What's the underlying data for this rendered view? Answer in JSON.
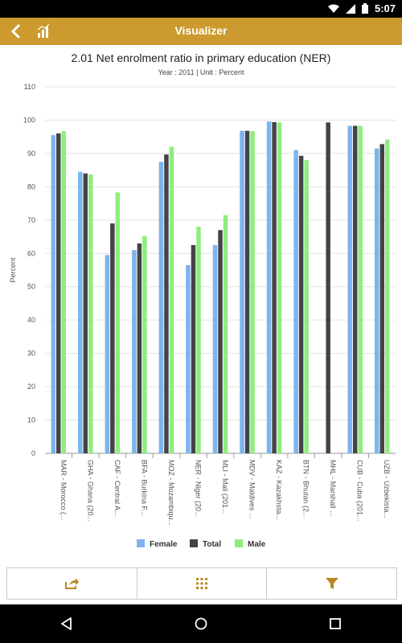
{
  "status_bar": {
    "time": "5:07",
    "icons": [
      "wifi-icon",
      "signal-icon",
      "battery-icon"
    ]
  },
  "app_bar": {
    "title": "Visualizer",
    "back_icon": "back-chevron-icon",
    "chart_icon": "bar-chart-icon",
    "color": "#cc9a2f"
  },
  "bottom_toolbar": {
    "icons": [
      "share-icon",
      "grid-icon",
      "filter-icon"
    ],
    "icon_color": "#b8881f"
  },
  "nav_bar": {
    "icons": [
      "back-triangle-icon",
      "home-circle-icon",
      "recents-square-icon"
    ]
  },
  "chart_data": {
    "type": "bar",
    "title": "2.01 Net enrolment ratio in primary education (NER)",
    "subtitle": "Year : 2011 | Unit : Percent",
    "ylabel": "Percent",
    "ylim": [
      0,
      110
    ],
    "yticks": [
      "0",
      "10",
      "20",
      "30",
      "40",
      "50",
      "60",
      "70",
      "80",
      "90",
      "100",
      "110"
    ],
    "grid": true,
    "legend_position": "bottom",
    "categories": [
      "MAR - Morocco (...",
      "GHA - Ghana (20...",
      "CAF - Central A...",
      "BFA - Burkina F...",
      "MOZ - Mozambiqu...",
      "NER - Niger (20...",
      "MLI - Mali (201...",
      "MDV - Maldives ...",
      "KAZ - Kazakhsta...",
      "BTN - Bhutan (2...",
      "MHL - Marshall ...",
      "CUB - Cuba (201...",
      "UZB - Uzbekista..."
    ],
    "series": [
      {
        "name": "Female",
        "color": "#7cb5ec",
        "values": [
          95.5,
          84.5,
          59.5,
          61.0,
          87.5,
          56.5,
          62.5,
          96.8,
          99.6,
          91.0,
          null,
          98.3,
          91.5
        ]
      },
      {
        "name": "Total",
        "color": "#434348",
        "values": [
          96.0,
          84.0,
          69.0,
          63.0,
          89.7,
          62.5,
          67.0,
          96.8,
          99.4,
          89.3,
          99.3,
          98.3,
          92.8
        ]
      },
      {
        "name": "Male",
        "color": "#90ed7d",
        "values": [
          96.7,
          83.7,
          78.3,
          65.2,
          92.0,
          68.0,
          71.5,
          96.7,
          99.3,
          88.0,
          null,
          98.3,
          94.2
        ]
      }
    ]
  }
}
